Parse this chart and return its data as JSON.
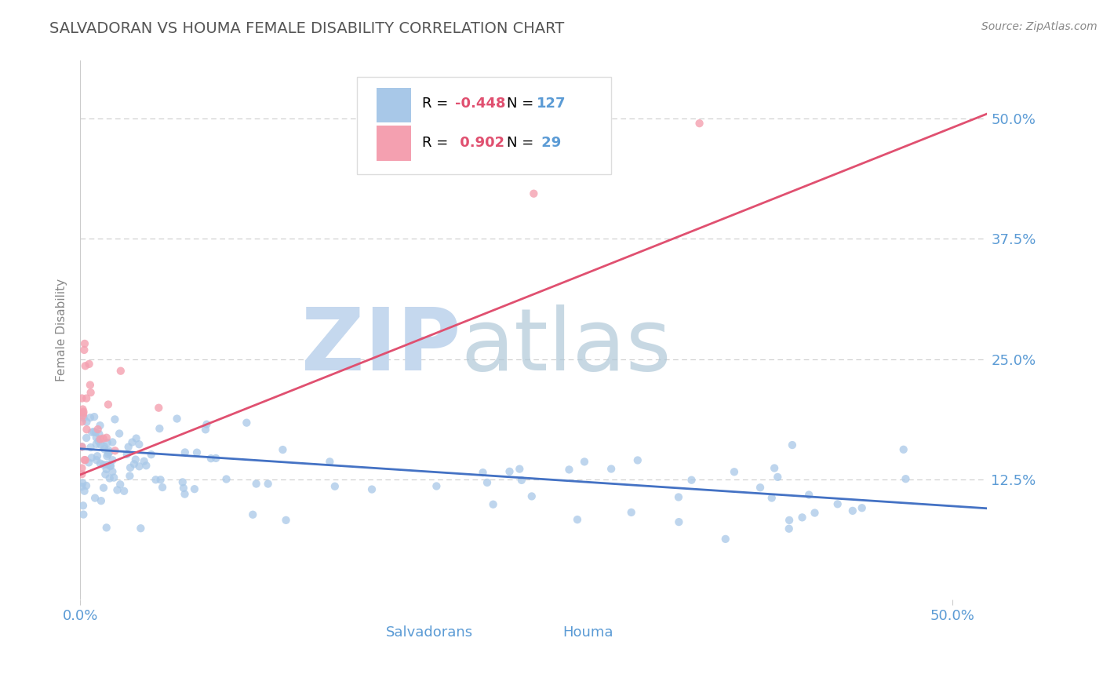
{
  "title": "SALVADORAN VS HOUMA FEMALE DISABILITY CORRELATION CHART",
  "source": "Source: ZipAtlas.com",
  "ylabel": "Female Disability",
  "blue_R": -0.448,
  "blue_N": 127,
  "pink_R": 0.902,
  "pink_N": 29,
  "blue_color": "#A8C8E8",
  "pink_color": "#F4A0B0",
  "blue_line_color": "#4472C4",
  "pink_line_color": "#E05070",
  "title_color": "#555555",
  "axis_color": "#5B9BD5",
  "text_R_color": "#E05070",
  "text_N_color": "#5B9BD5",
  "grid_color": "#CCCCCC",
  "background_color": "#FFFFFF",
  "xlim": [
    0.0,
    0.52
  ],
  "ylim": [
    0.0,
    0.56
  ],
  "ytick_positions": [
    0.125,
    0.25,
    0.375,
    0.5
  ],
  "ytick_labels": [
    "12.5%",
    "25.0%",
    "37.5%",
    "50.0%"
  ],
  "xtick_positions": [
    0.0,
    0.5
  ],
  "xtick_labels": [
    "0.0%",
    "50.0%"
  ],
  "blue_line_x0": 0.0,
  "blue_line_x1": 0.52,
  "blue_line_y0": 0.157,
  "blue_line_y1": 0.095,
  "pink_line_x0": 0.0,
  "pink_line_x1": 0.52,
  "pink_line_y0": 0.13,
  "pink_line_y1": 0.505,
  "watermark_ZIP_color": "#C5D8EE",
  "watermark_atlas_color": "#B0C8D8",
  "legend_blue_rect_color": "#A8C8E8",
  "legend_pink_rect_color": "#F4A0B0",
  "legend_border_color": "#DDDDDD"
}
